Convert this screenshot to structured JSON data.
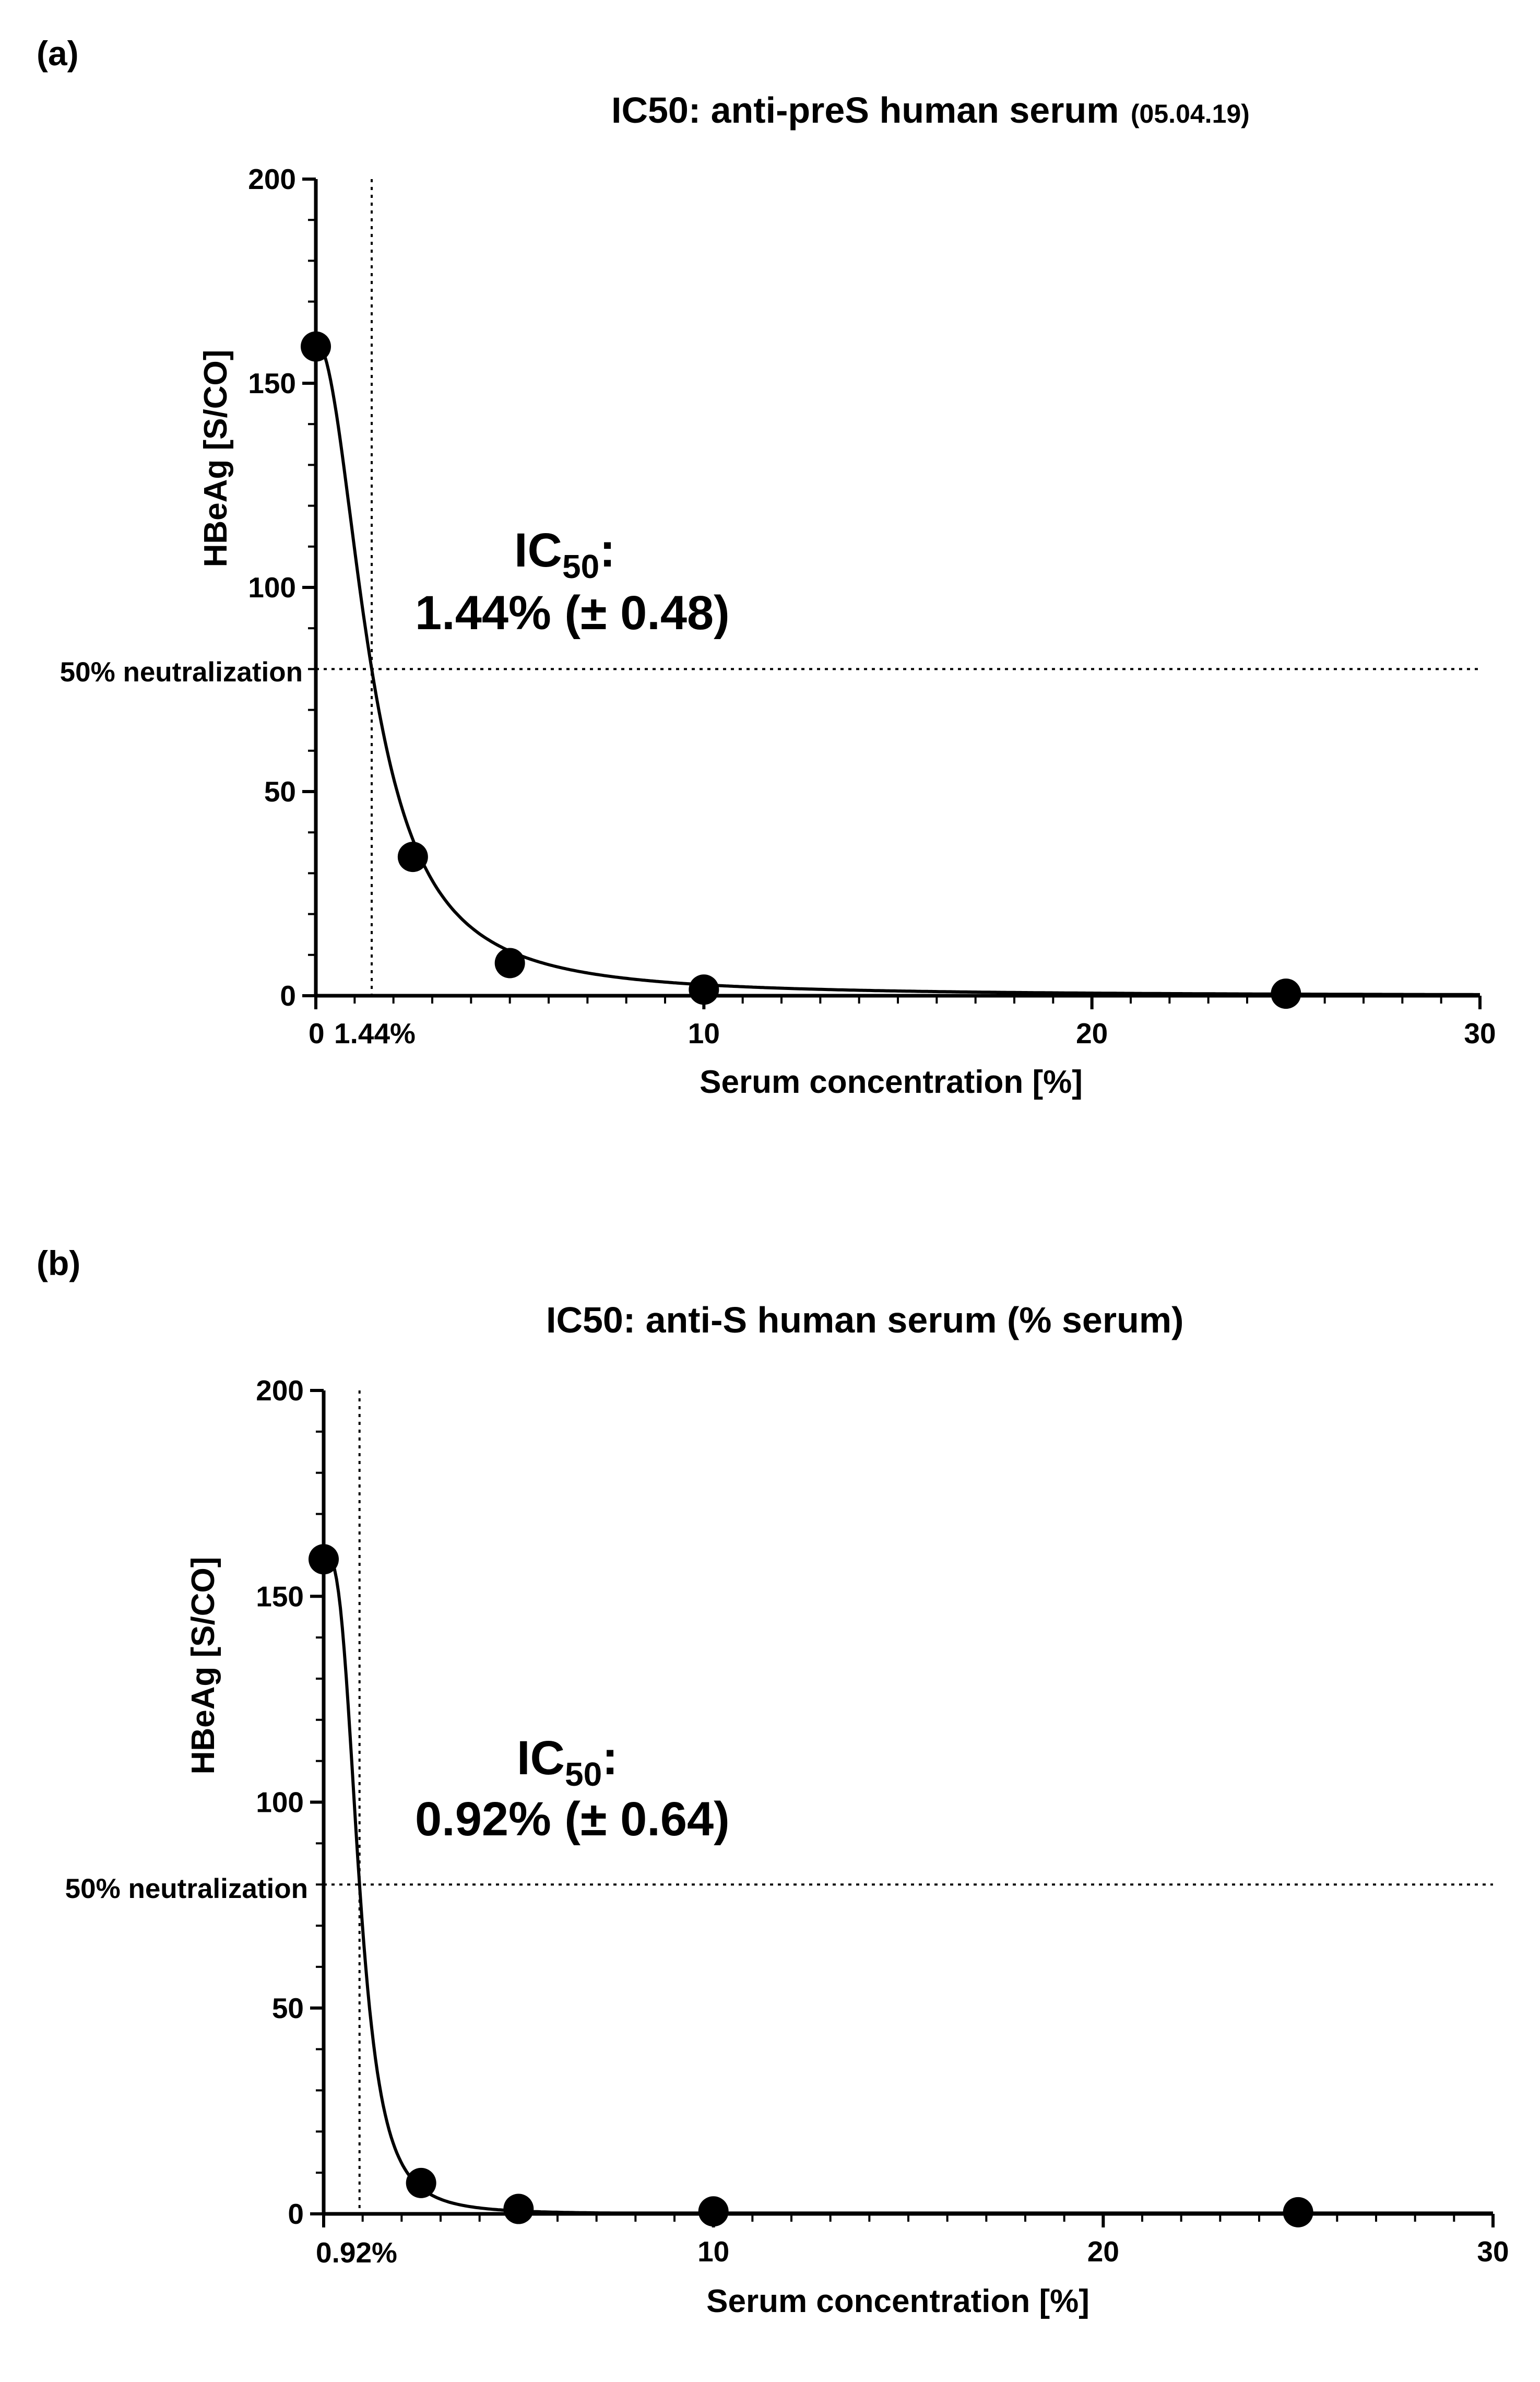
{
  "panels": [
    {
      "letter": "(a)",
      "title": "IC50: anti-preS human serum",
      "title_suffix": "(05.04.19)",
      "ic50_label": "IC",
      "ic50_subscript": "50",
      "ic50_colon": ":",
      "ic50_value": "1.44% (± 0.48)",
      "ic50_tick_label": "1.44%",
      "ref_line_label": "50% neutralization"
    },
    {
      "letter": "(b)",
      "title": "IC50: anti-S human serum (% serum)",
      "title_suffix": "",
      "ic50_label": "IC",
      "ic50_subscript": "50",
      "ic50_colon": ":",
      "ic50_value": "0.92% (± 0.64)",
      "ic50_tick_label": "0.92%",
      "ref_line_label": "50% neutralization"
    }
  ],
  "chart_data": [
    {
      "type": "scatter",
      "title": "IC50: anti-preS human serum (05.04.19)",
      "xlabel": "Serum concentration [%]",
      "ylabel": "HBeAg [S/CO]",
      "xlim": [
        0,
        30
      ],
      "ylim": [
        0,
        200
      ],
      "x_ticks": [
        0,
        10,
        20,
        30
      ],
      "x_tick_labels": [
        "0",
        "10",
        "20",
        "30"
      ],
      "y_ticks": [
        0,
        50,
        100,
        150,
        200
      ],
      "y_tick_labels": [
        "0",
        "50",
        "100",
        "150",
        "200"
      ],
      "series": [
        {
          "x": [
            0,
            2.5,
            5,
            10,
            25
          ],
          "y": [
            159,
            34,
            8,
            1.5,
            0.5
          ]
        }
      ],
      "fit_curve": true,
      "ic50_x": 1.44,
      "ic50_sd": 0.48,
      "neutralization_y": 80,
      "grid": false
    },
    {
      "type": "scatter",
      "title": "IC50: anti-S human serum (% serum)",
      "xlabel": "Serum concentration [%]",
      "ylabel": "HBeAg [S/CO]",
      "xlim": [
        0,
        30
      ],
      "ylim": [
        0,
        200
      ],
      "x_ticks": [
        10,
        20,
        30
      ],
      "x_tick_labels": [
        "10",
        "20",
        "30"
      ],
      "y_ticks": [
        0,
        50,
        100,
        150,
        200
      ],
      "y_tick_labels": [
        "0",
        "50",
        "100",
        "150",
        "200"
      ],
      "series": [
        {
          "x": [
            0,
            2.5,
            5,
            10,
            25
          ],
          "y": [
            159,
            7.5,
            1.2,
            0.6,
            0.4
          ]
        }
      ],
      "fit_curve": true,
      "ic50_x": 0.92,
      "ic50_sd": 0.64,
      "neutralization_y": 80,
      "grid": false
    }
  ]
}
